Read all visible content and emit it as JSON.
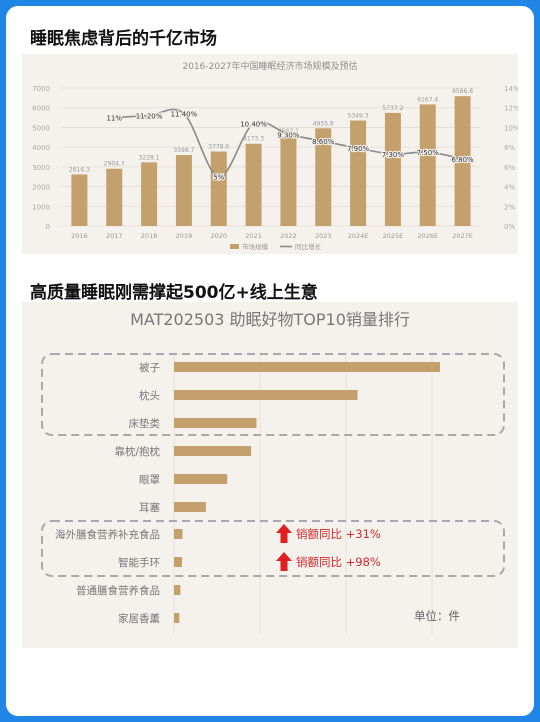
{
  "headings": {
    "top": "睡眠焦虑背后的千亿市场",
    "middle": "高质量睡眠刚需撑起500亿+线上生意"
  },
  "colors": {
    "frame": "#1f86e6",
    "bar": "#c4a06c",
    "line": "#8a8a8a",
    "dashed_box": "#a9a9a9",
    "arrow": "#e02020",
    "growth_text": "#d42a2a"
  },
  "chart_data": [
    {
      "type": "bar+line",
      "title": "2016-2027年中国睡眠经济市场规模及预估",
      "categories": [
        "2016",
        "2017",
        "2018",
        "2019",
        "2020",
        "2021",
        "2022",
        "2023",
        "2024E",
        "2025E",
        "2026E",
        "2027E"
      ],
      "series": [
        {
          "name": "市场规模",
          "type": "bar",
          "axis": "left",
          "values": [
            2616.3,
            2904.7,
            3228.1,
            3598.7,
            3778.6,
            4173.3,
            4562.1,
            4955.8,
            5349.3,
            5737.2,
            6167.4,
            6586.8
          ],
          "labels": [
            "2616.3",
            "2904.7",
            "3228.1",
            "3598.7",
            "3778.6",
            "4173.3",
            "4562.1",
            "4955.8",
            "5349.3",
            "5737.2",
            "6167.4",
            "6586.8"
          ]
        },
        {
          "name": "同比增长",
          "type": "line",
          "axis": "right",
          "values": [
            null,
            11,
            11.2,
            11.4,
            5,
            10.4,
            9.3,
            8.6,
            7.9,
            7.3,
            7.5,
            6.8
          ],
          "labels": [
            null,
            "11%",
            "11.20%",
            "11.40%",
            "5%",
            "10.40%",
            "9.30%",
            "8.60%",
            "7.90%",
            "7.30%",
            "7.50%",
            "6.80%"
          ]
        }
      ],
      "ylim_left": [
        0,
        7000
      ],
      "yticks_left": [
        "0",
        "1000",
        "2000",
        "3000",
        "4000",
        "5000",
        "6000",
        "7000"
      ],
      "ylim_right": [
        0,
        14
      ],
      "yticks_right": [
        "0%",
        "2%",
        "4%",
        "6%",
        "8%",
        "10%",
        "12%",
        "14%"
      ],
      "grid": true,
      "legend_position": "bottom"
    },
    {
      "type": "bar",
      "orientation": "horizontal",
      "title": "MAT202503 助眠好物TOP10销量排行",
      "categories": [
        "被子",
        "枕头",
        "床垫类",
        "靠枕/抱枕",
        "眼罩",
        "耳塞",
        "海外膳食营养补充食品",
        "智能手环",
        "普通膳食营养食品",
        "家居香薰"
      ],
      "values": [
        100,
        69,
        31,
        29,
        20,
        12,
        3.2,
        3.0,
        2.4,
        2.0
      ],
      "value_scale": "relative to 被子 = 100",
      "unit_note": "单位：件",
      "annotations": [
        {
          "category": "海外膳食营养补充食品",
          "text": "销额同比 +31%"
        },
        {
          "category": "智能手环",
          "text": "销额同比 +98%"
        }
      ],
      "grid": true
    }
  ]
}
